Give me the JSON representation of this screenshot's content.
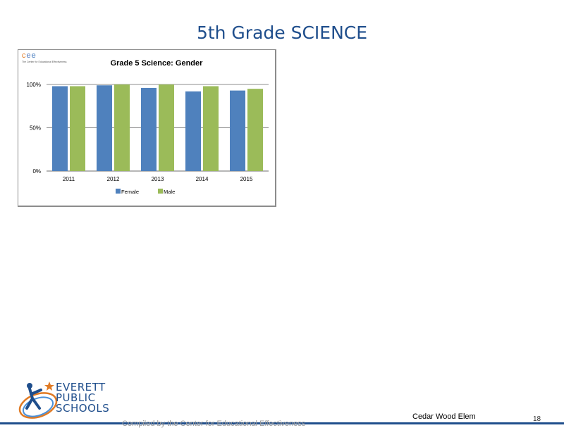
{
  "slide": {
    "title": "5th Grade SCIENCE"
  },
  "logo_cee": {
    "letters": [
      "c",
      "e",
      "e"
    ],
    "tagline": "The Center for Educational Effectiveness"
  },
  "chart_data": {
    "type": "bar",
    "title": "Grade 5 Science: Gender",
    "categories": [
      "2011",
      "2012",
      "2013",
      "2014",
      "2015"
    ],
    "series": [
      {
        "name": "Female",
        "color": "#4F81BD",
        "values": [
          98,
          99,
          96,
          92,
          93
        ]
      },
      {
        "name": "Male",
        "color": "#9BBB59",
        "values": [
          98,
          100,
          100,
          98,
          95
        ]
      }
    ],
    "ylim": [
      0,
      100
    ],
    "yticks": [
      "0%",
      "50%",
      "100%"
    ],
    "ytick_values": [
      0,
      50,
      100
    ],
    "grid": true,
    "legend_position": "bottom",
    "xlabel": "",
    "ylabel": ""
  },
  "footer": {
    "credit": "Compiled by the Center for Educational Effectiveness",
    "school": "Cedar Wood Elem",
    "page": "18",
    "accent_color": "#1F4E8C"
  },
  "district_logo": {
    "lines": [
      "EVERETT",
      "PUBLIC",
      "SCHOOLS"
    ]
  }
}
